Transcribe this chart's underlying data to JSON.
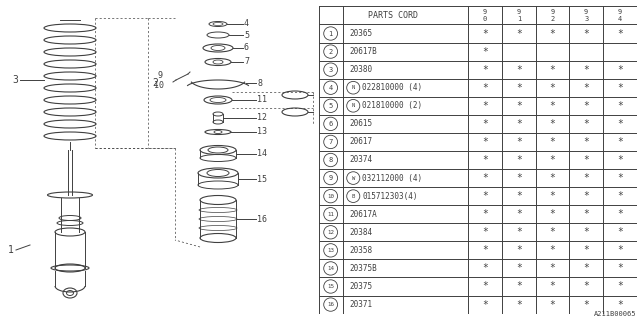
{
  "footer": "A211B00065",
  "rows": [
    {
      "num": "1",
      "code": "20365",
      "marks": [
        true,
        true,
        true,
        true,
        true
      ],
      "prefix": ""
    },
    {
      "num": "2",
      "code": "20617B",
      "marks": [
        true,
        false,
        false,
        false,
        false
      ],
      "prefix": ""
    },
    {
      "num": "3",
      "code": "20380",
      "marks": [
        true,
        true,
        true,
        true,
        true
      ],
      "prefix": ""
    },
    {
      "num": "4",
      "code": "022810000 (4)",
      "marks": [
        true,
        true,
        true,
        true,
        true
      ],
      "prefix": "N"
    },
    {
      "num": "5",
      "code": "021810000 (2)",
      "marks": [
        true,
        true,
        true,
        true,
        true
      ],
      "prefix": "N"
    },
    {
      "num": "6",
      "code": "20615",
      "marks": [
        true,
        true,
        true,
        true,
        true
      ],
      "prefix": ""
    },
    {
      "num": "7",
      "code": "20617",
      "marks": [
        true,
        true,
        true,
        true,
        true
      ],
      "prefix": ""
    },
    {
      "num": "8",
      "code": "20374",
      "marks": [
        true,
        true,
        true,
        true,
        true
      ],
      "prefix": ""
    },
    {
      "num": "9",
      "code": "032112000 (4)",
      "marks": [
        true,
        true,
        true,
        true,
        true
      ],
      "prefix": "W"
    },
    {
      "num": "10",
      "code": "015712303(4)",
      "marks": [
        true,
        true,
        true,
        true,
        true
      ],
      "prefix": "B"
    },
    {
      "num": "11",
      "code": "20617A",
      "marks": [
        true,
        true,
        true,
        true,
        true
      ],
      "prefix": ""
    },
    {
      "num": "12",
      "code": "20384",
      "marks": [
        true,
        true,
        true,
        true,
        true
      ],
      "prefix": ""
    },
    {
      "num": "13",
      "code": "20358",
      "marks": [
        true,
        true,
        true,
        true,
        true
      ],
      "prefix": ""
    },
    {
      "num": "14",
      "code": "20375B",
      "marks": [
        true,
        true,
        true,
        true,
        true
      ],
      "prefix": ""
    },
    {
      "num": "15",
      "code": "20375",
      "marks": [
        true,
        true,
        true,
        true,
        true
      ],
      "prefix": ""
    },
    {
      "num": "16",
      "code": "20371",
      "marks": [
        true,
        true,
        true,
        true,
        true
      ],
      "prefix": ""
    }
  ],
  "col_heads": [
    "9\n0",
    "9\n1",
    "9\n2",
    "9\n3",
    "9\n4"
  ],
  "bg_color": "#ffffff",
  "line_color": "#404040"
}
